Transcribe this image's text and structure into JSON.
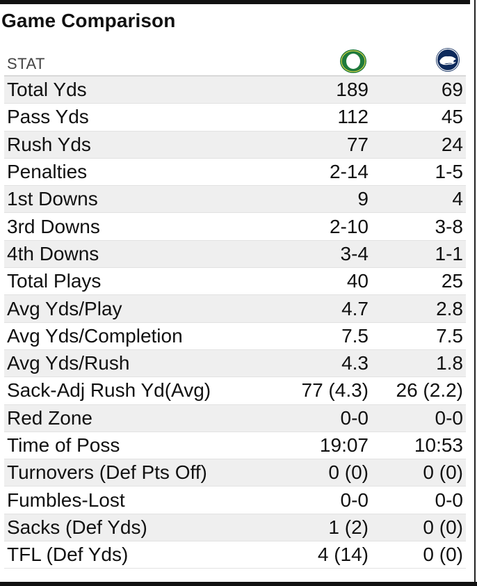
{
  "title": "Game Comparison",
  "header": {
    "stat_label": "STAT",
    "team_a_logo": "oregon-o-logo",
    "team_b_logo": "nittany-lion-logo"
  },
  "colors": {
    "team_a": "#1f7a3c",
    "team_b": "#0d2a5c",
    "row_alt": "#efefef"
  },
  "rows": [
    {
      "stat": "Total Yds",
      "a": "189",
      "b": "69"
    },
    {
      "stat": "Pass Yds",
      "a": "112",
      "b": "45"
    },
    {
      "stat": "Rush Yds",
      "a": "77",
      "b": "24"
    },
    {
      "stat": "Penalties",
      "a": "2-14",
      "b": "1-5"
    },
    {
      "stat": "1st Downs",
      "a": "9",
      "b": "4"
    },
    {
      "stat": "3rd Downs",
      "a": "2-10",
      "b": "3-8"
    },
    {
      "stat": "4th Downs",
      "a": "3-4",
      "b": "1-1"
    },
    {
      "stat": "Total Plays",
      "a": "40",
      "b": "25"
    },
    {
      "stat": "Avg Yds/Play",
      "a": "4.7",
      "b": "2.8"
    },
    {
      "stat": "Avg Yds/Completion",
      "a": "7.5",
      "b": "7.5"
    },
    {
      "stat": "Avg Yds/Rush",
      "a": "4.3",
      "b": "1.8"
    },
    {
      "stat": "Sack-Adj Rush Yd(Avg)",
      "a": "77 (4.3)",
      "b": "26 (2.2)"
    },
    {
      "stat": "Red Zone",
      "a": "0-0",
      "b": "0-0"
    },
    {
      "stat": "Time of Poss",
      "a": "19:07",
      "b": "10:53"
    },
    {
      "stat": "Turnovers (Def Pts Off)",
      "a": "0 (0)",
      "b": "0 (0)"
    },
    {
      "stat": "Fumbles-Lost",
      "a": "0-0",
      "b": "0-0"
    },
    {
      "stat": "Sacks (Def Yds)",
      "a": "1 (2)",
      "b": "0 (0)"
    },
    {
      "stat": "TFL (Def Yds)",
      "a": "4 (14)",
      "b": "0 (0)"
    }
  ]
}
